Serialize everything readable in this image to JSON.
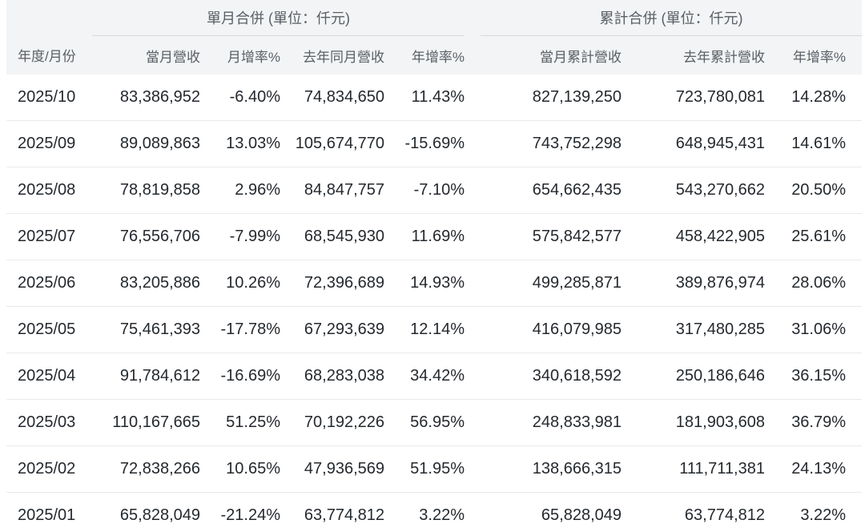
{
  "chart_data": {
    "type": "table",
    "group_headers": [
      "單月合併 (單位：仟元)",
      "累計合併 (單位：仟元)"
    ],
    "columns": [
      "年度/月份",
      "當月營收",
      "月增率%",
      "去年同月營收",
      "年增率%",
      "當月累計營收",
      "去年累計營收",
      "年增率%"
    ],
    "rows": [
      [
        "2025/10",
        "83,386,952",
        "-6.40%",
        "74,834,650",
        "11.43%",
        "827,139,250",
        "723,780,081",
        "14.28%"
      ],
      [
        "2025/09",
        "89,089,863",
        "13.03%",
        "105,674,770",
        "-15.69%",
        "743,752,298",
        "648,945,431",
        "14.61%"
      ],
      [
        "2025/08",
        "78,819,858",
        "2.96%",
        "84,847,757",
        "-7.10%",
        "654,662,435",
        "543,270,662",
        "20.50%"
      ],
      [
        "2025/07",
        "76,556,706",
        "-7.99%",
        "68,545,930",
        "11.69%",
        "575,842,577",
        "458,422,905",
        "25.61%"
      ],
      [
        "2025/06",
        "83,205,886",
        "10.26%",
        "72,396,689",
        "14.93%",
        "499,285,871",
        "389,876,974",
        "28.06%"
      ],
      [
        "2025/05",
        "75,461,393",
        "-17.78%",
        "67,293,639",
        "12.14%",
        "416,079,985",
        "317,480,285",
        "31.06%"
      ],
      [
        "2025/04",
        "91,784,612",
        "-16.69%",
        "68,283,038",
        "34.42%",
        "340,618,592",
        "250,186,646",
        "36.15%"
      ],
      [
        "2025/03",
        "110,167,665",
        "51.25%",
        "70,192,226",
        "56.95%",
        "248,833,981",
        "181,903,608",
        "36.79%"
      ],
      [
        "2025/02",
        "72,838,266",
        "10.65%",
        "47,936,569",
        "51.95%",
        "138,666,315",
        "111,711,381",
        "24.13%"
      ],
      [
        "2025/01",
        "65,828,049",
        "-21.24%",
        "63,774,812",
        "3.22%",
        "65,828,049",
        "63,774,812",
        "3.22%"
      ]
    ],
    "layout": {
      "grid": "horizontal row dividers only",
      "legend": "none"
    }
  },
  "colors": {
    "header_background": "#f3f4f5",
    "header_text": "#585f66",
    "data_text": "#24292e",
    "row_divider": "#e8eaec",
    "group_underline": "#d6d9db",
    "page_background": "#ffffff"
  }
}
